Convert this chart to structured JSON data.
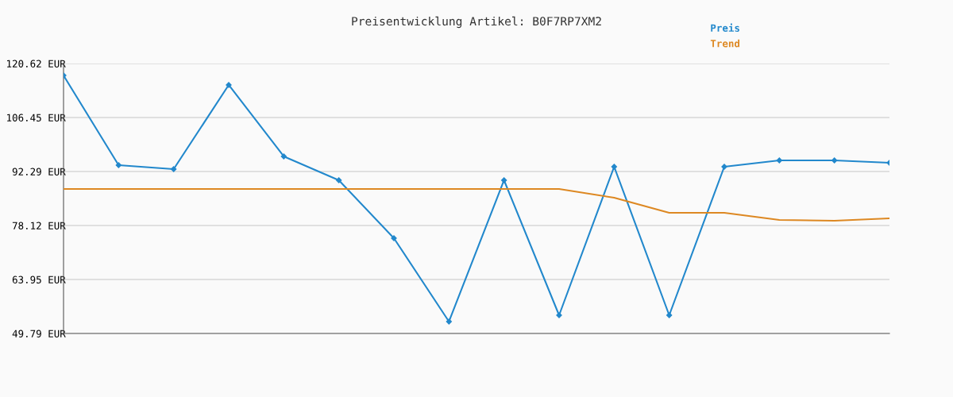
{
  "chart_data": {
    "type": "line",
    "title": "Preisentwicklung Artikel: B0F7RP7XM2",
    "categories": [
      null,
      null,
      null,
      null,
      null,
      null,
      null,
      null,
      null,
      null,
      null,
      null,
      null,
      null,
      null,
      null
    ],
    "series": [
      {
        "name": "Preis",
        "color": "#2288cc",
        "marker": "diamond",
        "values": [
          117.5,
          93.96,
          92.91,
          115.0,
          96.25,
          90.0,
          74.79,
          52.92,
          90.0,
          54.58,
          93.54,
          54.58,
          93.54,
          95.21,
          95.21,
          94.58
        ]
      },
      {
        "name": "Trend",
        "color": "#dd8822",
        "marker": "none",
        "values": [
          87.71,
          87.71,
          87.71,
          87.71,
          87.71,
          87.71,
          87.71,
          87.71,
          87.71,
          87.71,
          85.41,
          81.46,
          81.46,
          79.58,
          79.37,
          80.0
        ]
      }
    ],
    "ylim": [
      49.79,
      120.62
    ],
    "yticks": [
      {
        "value": 49.79,
        "label": "49.79 EUR"
      },
      {
        "value": 63.95,
        "label": "63.95 EUR"
      },
      {
        "value": 78.12,
        "label": "78.12 EUR"
      },
      {
        "value": 92.29,
        "label": "92.29 EUR"
      },
      {
        "value": 106.45,
        "label": "106.45 EUR"
      },
      {
        "value": 120.62,
        "label": "120.62 EUR"
      }
    ],
    "grid": "y",
    "legend": "top right"
  }
}
